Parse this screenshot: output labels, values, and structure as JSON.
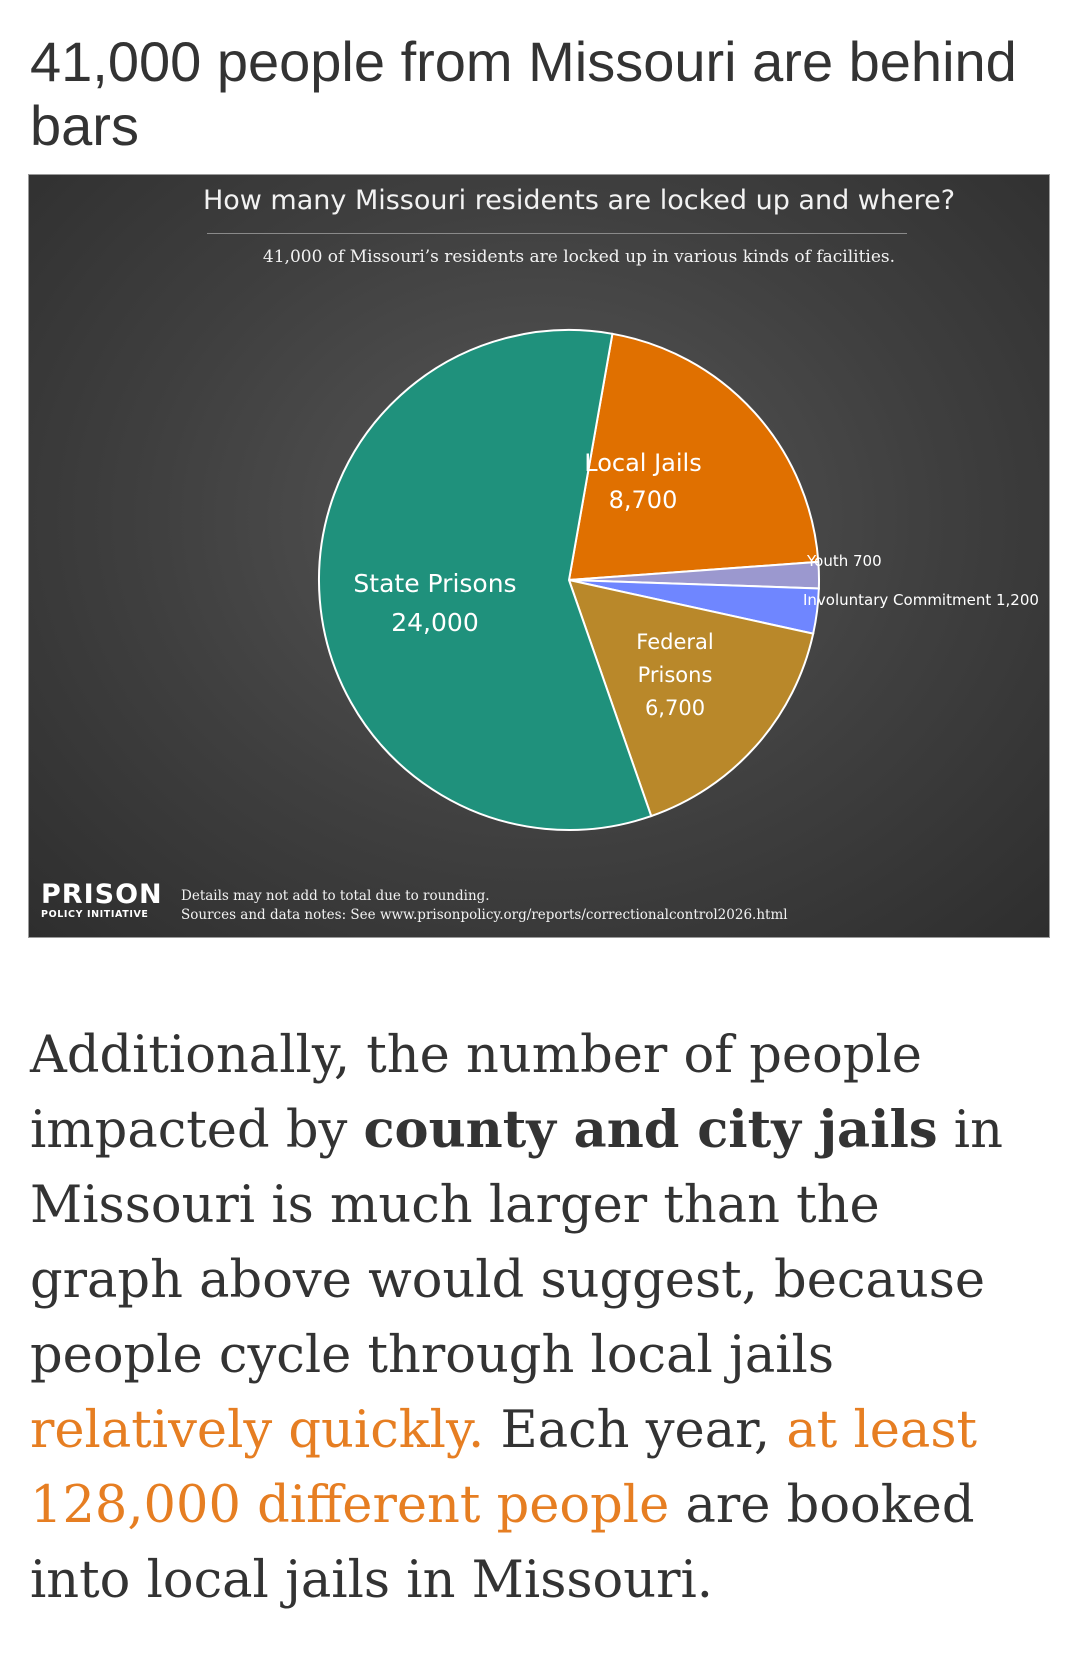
{
  "headline": "41,000 people from Missouri are behind bars",
  "chart_data": {
    "type": "pie",
    "title": "How many Missouri residents are locked up and where?",
    "subtitle": "41,000 of Missouri’s residents are locked up in various kinds of facilities.",
    "slices": [
      {
        "label": "Local Jails",
        "value": 8700,
        "value_label": "8,700",
        "color": "#e07000"
      },
      {
        "label": "Youth",
        "value": 700,
        "value_label": "700",
        "color": "#9b98cf"
      },
      {
        "label": "Involuntary Commitment",
        "value": 1200,
        "value_label": "1,200",
        "color": "#6f86ff"
      },
      {
        "label": "Federal Prisons",
        "value": 6700,
        "value_label": "6,700",
        "color": "#b9882a"
      },
      {
        "label": "State Prisons",
        "value": 24000,
        "value_label": "24,000",
        "color": "#1f917c"
      }
    ],
    "labels": {
      "local_jails_name": "Local Jails",
      "local_jails_value": "8,700",
      "state_name": "State Prisons",
      "state_value": "24,000",
      "federal_line1": "Federal",
      "federal_line2": "Prisons",
      "federal_value": "6,700",
      "youth": "Youth 700",
      "involuntary": "Involuntary Commitment 1,200"
    },
    "legend": "none",
    "grid": false
  },
  "brand": {
    "main": "PRISON",
    "sub": "POLICY INITIATIVE"
  },
  "notes": {
    "line1": "Details may not add to total due to rounding.",
    "line2": "Sources and data notes: See www.prisonpolicy.org/reports/correctionalcontrol2026.html"
  },
  "paragraph": {
    "part1": "Additionally, the number of people impacted by ",
    "bold": "county and city jails",
    "part2": " in Missouri is much larger than the graph above would suggest, because people cycle through local jails ",
    "link1": "relatively quickly.",
    "part3": " Each year, ",
    "link2": "at least 128,000 different people",
    "part4": " are booked into local jails in Missouri."
  },
  "colors": {
    "link": "#e67e22",
    "text": "#333333"
  }
}
